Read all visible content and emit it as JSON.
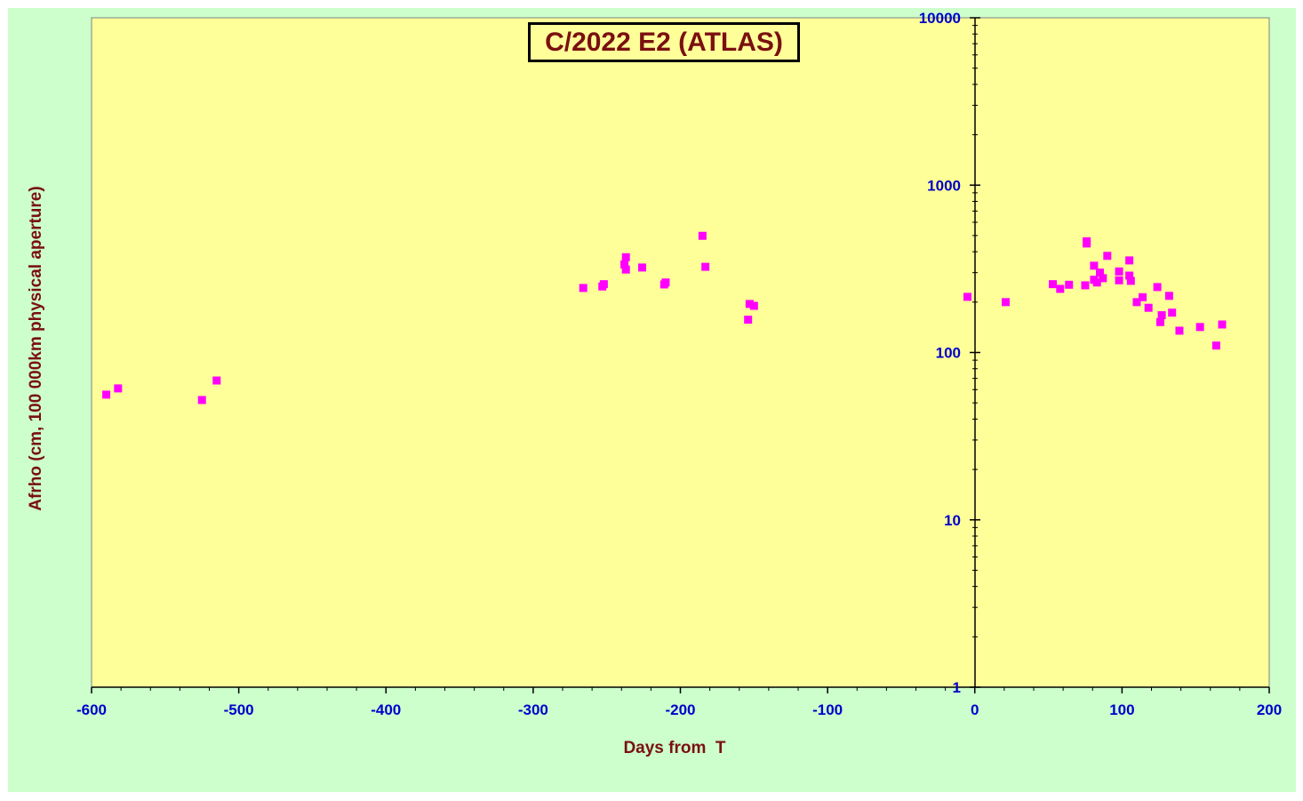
{
  "chart_data": {
    "type": "scatter",
    "title": "C/2022 E2 (ATLAS)",
    "xlabel": "Days from  T",
    "ylabel": "Afrho (cm, 100 000km physical aperture)",
    "xlim": [
      -600,
      200
    ],
    "ylim": [
      1,
      10000
    ],
    "yscale": "log",
    "xticks": [
      -600,
      -500,
      -400,
      -300,
      -200,
      -100,
      0,
      100,
      200
    ],
    "yticks": [
      1,
      10,
      100,
      1000,
      10000
    ],
    "xtick_labels": [
      "-600",
      "-500",
      "-400",
      "-300",
      "-200",
      "-100",
      "0",
      "100",
      "200"
    ],
    "ytick_labels": [
      "1",
      "10",
      "100",
      "1000",
      "10000"
    ],
    "grid": false,
    "colors": {
      "background": "#ccffcc",
      "plot_area": "#ffff99",
      "marker": "#ff00ff",
      "tick_text": "#0000cc",
      "title_text": "#7a1010"
    },
    "series": [
      {
        "marker": "square",
        "points": [
          [
            -590,
            56
          ],
          [
            -582,
            61
          ],
          [
            -525,
            52
          ],
          [
            -515,
            68
          ],
          [
            -266,
            243
          ],
          [
            -253,
            248
          ],
          [
            -252,
            256
          ],
          [
            -238,
            336
          ],
          [
            -237,
            313
          ],
          [
            -237,
            371
          ],
          [
            -226,
            322
          ],
          [
            -211,
            255
          ],
          [
            -210,
            262
          ],
          [
            -185,
            498
          ],
          [
            -183,
            325
          ],
          [
            -154,
            157
          ],
          [
            -153,
            195
          ],
          [
            -150,
            190
          ],
          [
            -5,
            215
          ],
          [
            21,
            200
          ],
          [
            53,
            256
          ],
          [
            58,
            240
          ],
          [
            64,
            254
          ],
          [
            75,
            252
          ],
          [
            76,
            462
          ],
          [
            76,
            448
          ],
          [
            81,
            272
          ],
          [
            81,
            330
          ],
          [
            83,
            262
          ],
          [
            85,
            300
          ],
          [
            87,
            278
          ],
          [
            90,
            378
          ],
          [
            98,
            305
          ],
          [
            98,
            270
          ],
          [
            105,
            355
          ],
          [
            105,
            288
          ],
          [
            106,
            268
          ],
          [
            110,
            200
          ],
          [
            114,
            214
          ],
          [
            118,
            185
          ],
          [
            124,
            246
          ],
          [
            126,
            152
          ],
          [
            127,
            167
          ],
          [
            132,
            218
          ],
          [
            134,
            173
          ],
          [
            139,
            135
          ],
          [
            153,
            142
          ],
          [
            164,
            110
          ],
          [
            168,
            147
          ]
        ]
      }
    ]
  }
}
